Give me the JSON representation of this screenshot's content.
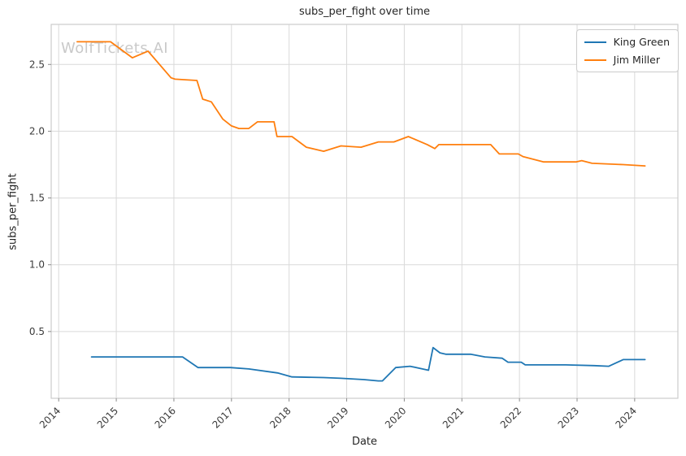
{
  "figure": {
    "title": "subs_per_fight over time",
    "watermark": "WolfTickets.AI",
    "xlabel": "Date",
    "ylabel": "subs_per_fight"
  },
  "colors": {
    "background": "#ffffff",
    "grid": "#d9d9d9",
    "spine": "#cccccc",
    "tick": "#8c8c8c",
    "tick_label": "#3b3b3b",
    "title_text": "#262626",
    "watermark": "#c9c9c9",
    "king_green": "#1f77b4",
    "jim_miller": "#ff7f0e"
  },
  "legend": {
    "position": "upper right",
    "entries": [
      {
        "label": "King Green",
        "color": "#1f77b4"
      },
      {
        "label": "Jim Miller",
        "color": "#ff7f0e"
      }
    ]
  },
  "chart_data": {
    "type": "line",
    "title": "subs_per_fight over time",
    "xlabel": "Date",
    "ylabel": "subs_per_fight",
    "grid": true,
    "legend_position": "upper right",
    "xlim": [
      2013.87,
      2024.75
    ],
    "ylim": [
      0.0,
      2.8
    ],
    "x_ticks": [
      2014,
      2015,
      2016,
      2017,
      2018,
      2019,
      2020,
      2021,
      2022,
      2023,
      2024
    ],
    "y_ticks": [
      0.5,
      1.0,
      1.5,
      2.0,
      2.5
    ],
    "series": [
      {
        "name": "King Green",
        "color": "#1f77b4",
        "points": [
          [
            2014.57,
            0.31
          ],
          [
            2016.15,
            0.31
          ],
          [
            2016.42,
            0.23
          ],
          [
            2016.98,
            0.23
          ],
          [
            2017.3,
            0.22
          ],
          [
            2017.8,
            0.19
          ],
          [
            2018.05,
            0.16
          ],
          [
            2018.6,
            0.155
          ],
          [
            2018.9,
            0.15
          ],
          [
            2019.3,
            0.14
          ],
          [
            2019.55,
            0.13
          ],
          [
            2019.62,
            0.13
          ],
          [
            2019.85,
            0.23
          ],
          [
            2020.1,
            0.24
          ],
          [
            2020.42,
            0.21
          ],
          [
            2020.5,
            0.38
          ],
          [
            2020.62,
            0.34
          ],
          [
            2020.72,
            0.33
          ],
          [
            2021.15,
            0.33
          ],
          [
            2021.4,
            0.31
          ],
          [
            2021.7,
            0.3
          ],
          [
            2021.8,
            0.27
          ],
          [
            2022.03,
            0.27
          ],
          [
            2022.1,
            0.25
          ],
          [
            2022.8,
            0.25
          ],
          [
            2023.3,
            0.245
          ],
          [
            2023.55,
            0.24
          ],
          [
            2023.8,
            0.29
          ],
          [
            2024.18,
            0.29
          ]
        ]
      },
      {
        "name": "Jim Miller",
        "color": "#ff7f0e",
        "points": [
          [
            2014.32,
            2.67
          ],
          [
            2014.9,
            2.67
          ],
          [
            2015.28,
            2.55
          ],
          [
            2015.55,
            2.6
          ],
          [
            2015.95,
            2.4
          ],
          [
            2016.02,
            2.39
          ],
          [
            2016.4,
            2.38
          ],
          [
            2016.5,
            2.24
          ],
          [
            2016.65,
            2.22
          ],
          [
            2016.85,
            2.09
          ],
          [
            2017.0,
            2.04
          ],
          [
            2017.13,
            2.02
          ],
          [
            2017.3,
            2.02
          ],
          [
            2017.45,
            2.07
          ],
          [
            2017.74,
            2.07
          ],
          [
            2017.79,
            1.96
          ],
          [
            2018.05,
            1.96
          ],
          [
            2018.3,
            1.88
          ],
          [
            2018.6,
            1.85
          ],
          [
            2018.9,
            1.89
          ],
          [
            2019.25,
            1.88
          ],
          [
            2019.55,
            1.92
          ],
          [
            2019.82,
            1.92
          ],
          [
            2020.07,
            1.96
          ],
          [
            2020.4,
            1.9
          ],
          [
            2020.53,
            1.87
          ],
          [
            2020.6,
            1.9
          ],
          [
            2021.5,
            1.9
          ],
          [
            2021.65,
            1.83
          ],
          [
            2021.98,
            1.83
          ],
          [
            2022.06,
            1.81
          ],
          [
            2022.42,
            1.77
          ],
          [
            2022.98,
            1.77
          ],
          [
            2023.08,
            1.78
          ],
          [
            2023.26,
            1.76
          ],
          [
            2023.8,
            1.75
          ],
          [
            2024.18,
            1.74
          ]
        ]
      }
    ]
  }
}
